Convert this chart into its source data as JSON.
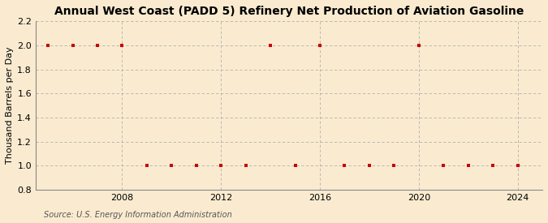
{
  "title": "Annual West Coast (PADD 5) Refinery Net Production of Aviation Gasoline",
  "ylabel": "Thousand Barrels per Day",
  "source": "Source: U.S. Energy Information Administration",
  "background_color": "#faebd0",
  "years": [
    2005,
    2006,
    2007,
    2008,
    2009,
    2010,
    2011,
    2012,
    2013,
    2014,
    2015,
    2016,
    2017,
    2018,
    2019,
    2020,
    2021,
    2022,
    2023,
    2024
  ],
  "values": [
    2.0,
    2.0,
    2.0,
    2.0,
    1.0,
    1.0,
    1.0,
    1.0,
    1.0,
    2.0,
    1.0,
    2.0,
    1.0,
    1.0,
    1.0,
    2.0,
    1.0,
    1.0,
    1.0,
    1.0
  ],
  "marker_color": "#cc0000",
  "marker": "s",
  "marker_size": 3.5,
  "xlim": [
    2004.5,
    2025
  ],
  "ylim": [
    0.8,
    2.2
  ],
  "yticks": [
    0.8,
    1.0,
    1.2,
    1.4,
    1.6,
    1.8,
    2.0,
    2.2
  ],
  "xticks": [
    2008,
    2012,
    2016,
    2020,
    2024
  ],
  "grid_color": "#b0b0b0",
  "grid_style": "--",
  "title_fontsize": 10,
  "label_fontsize": 8,
  "tick_fontsize": 8,
  "source_fontsize": 7
}
